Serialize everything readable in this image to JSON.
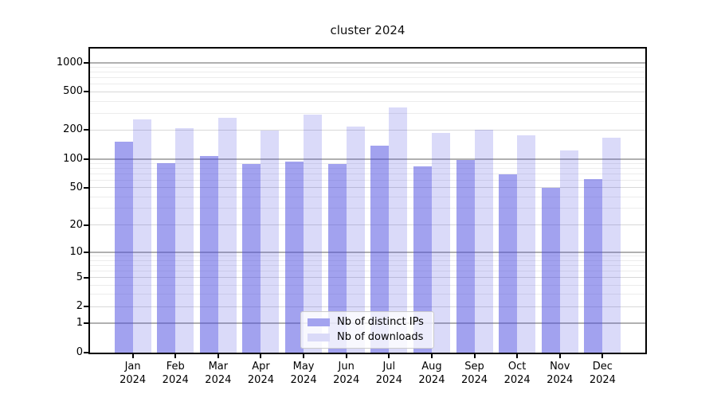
{
  "title": "cluster 2024",
  "colors": {
    "bar_ips_solid": "#a3a3ef",
    "bar_downloads_solid": "#dadaf8",
    "bar_ips_rgba": "rgba(70,70,224,0.5)",
    "bar_downloads_rgba": "rgba(70,70,224,0.2)",
    "grid_major": "#b0b0b0",
    "grid_mid": "#d8d8d8",
    "grid_minor": "#ececec",
    "axis": "#000000"
  },
  "legend": {
    "items": [
      {
        "label": "Nb of distinct IPs"
      },
      {
        "label": "Nb of downloads"
      }
    ]
  },
  "chart_data": {
    "type": "bar",
    "title": "cluster 2024",
    "categories": [
      "Jan",
      "Feb",
      "Mar",
      "Apr",
      "May",
      "Jun",
      "Jul",
      "Aug",
      "Sep",
      "Oct",
      "Nov",
      "Dec"
    ],
    "year_label": "2024",
    "series": [
      {
        "name": "Nb of distinct IPs",
        "values": [
          152,
          90,
          107,
          88,
          94,
          89,
          139,
          84,
          98,
          69,
          50,
          61
        ]
      },
      {
        "name": "Nb of downloads",
        "values": [
          259,
          210,
          267,
          199,
          289,
          216,
          341,
          186,
          202,
          176,
          122,
          168
        ]
      }
    ],
    "yscale": "log1p",
    "ylim": [
      0,
      1402
    ],
    "yticks": [
      0,
      1,
      2,
      5,
      10,
      20,
      50,
      100,
      200,
      500,
      1000
    ],
    "major_yticks": [
      1,
      10,
      100,
      1000
    ],
    "minor_yticks": [
      3,
      4,
      6,
      7,
      8,
      9,
      30,
      40,
      60,
      70,
      80,
      90,
      300,
      400,
      600,
      700,
      800,
      900
    ],
    "grid": true,
    "legend_position": "lower center",
    "xlabel": "",
    "ylabel": ""
  }
}
